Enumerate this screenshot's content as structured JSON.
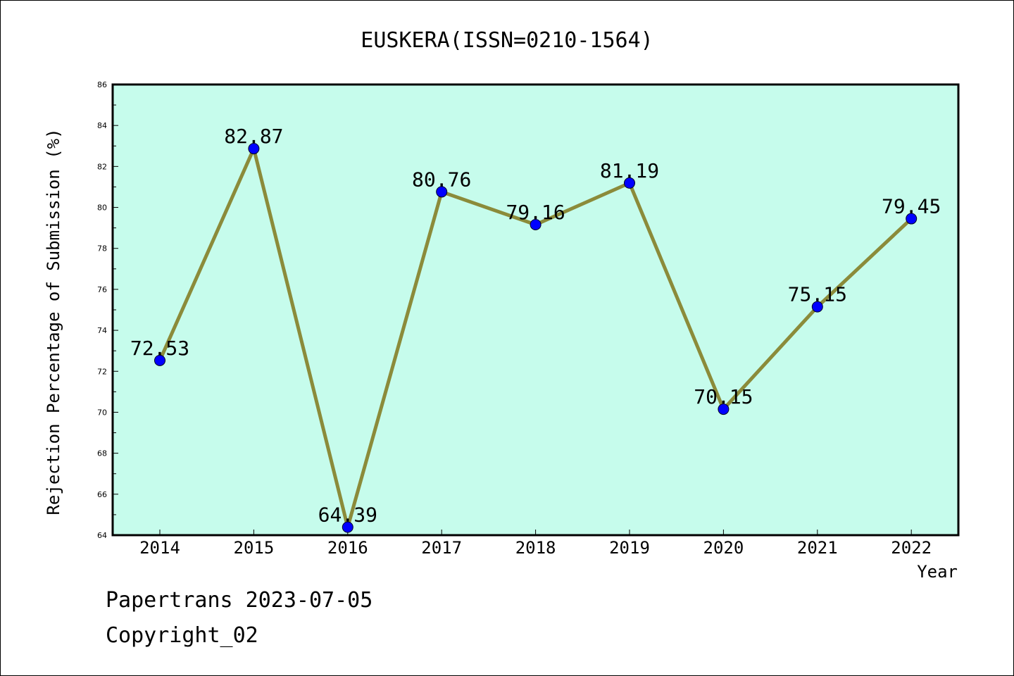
{
  "chart_data": {
    "type": "line",
    "title": "EUSKERA(ISSN=0210-1564)",
    "xlabel": "Year",
    "ylabel": "Rejection Percentage of Submission (%)",
    "categories": [
      "2014",
      "2015",
      "2016",
      "2017",
      "2018",
      "2019",
      "2020",
      "2021",
      "2022"
    ],
    "values": [
      72.53,
      82.87,
      64.39,
      80.76,
      79.16,
      81.19,
      70.15,
      75.15,
      79.45
    ],
    "data_labels": [
      "72.53",
      "82.87",
      "64.39",
      "80.76",
      "79.16",
      "81.19",
      "70.15",
      "75.15",
      "79.45"
    ],
    "ylim": [
      64,
      86
    ],
    "yticks": [
      "64",
      "66",
      "68",
      "70",
      "72",
      "74",
      "76",
      "78",
      "80",
      "82",
      "84",
      "86"
    ],
    "grid": false,
    "colors": {
      "plot_background": "#c6fcec",
      "line": "#8b8b3a",
      "marker": "#0000ff"
    }
  },
  "footer": {
    "line1": "Papertrans 2023-07-05",
    "line2": "Copyright_02"
  }
}
